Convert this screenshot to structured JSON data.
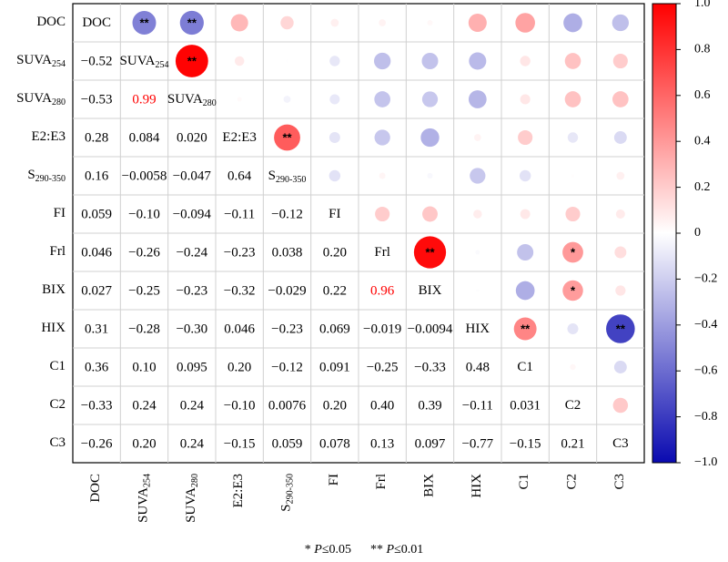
{
  "chart_data": {
    "type": "heatmap",
    "variables": [
      "DOC",
      "SUVA254",
      "SUVA280",
      "E2:E3",
      "S290-350",
      "FI",
      "Frl",
      "BIX",
      "HIX",
      "C1",
      "C2",
      "C3"
    ],
    "labels": [
      {
        "main": "DOC",
        "sub": ""
      },
      {
        "main": "SUVA",
        "sub": "254"
      },
      {
        "main": "SUVA",
        "sub": "280"
      },
      {
        "main": "E2:E3",
        "sub": ""
      },
      {
        "main": "S",
        "sub": "290-350"
      },
      {
        "main": "FI",
        "sub": ""
      },
      {
        "main": "Frl",
        "sub": ""
      },
      {
        "main": "BIX",
        "sub": ""
      },
      {
        "main": "HIX",
        "sub": ""
      },
      {
        "main": "C1",
        "sub": ""
      },
      {
        "main": "C2",
        "sub": ""
      },
      {
        "main": "C3",
        "sub": ""
      }
    ],
    "matrix": [
      [
        1,
        -0.52,
        -0.53,
        0.28,
        0.16,
        0.059,
        0.046,
        0.027,
        0.31,
        0.36,
        -0.33,
        -0.26
      ],
      [
        -0.52,
        1,
        0.99,
        0.084,
        -0.0058,
        -0.1,
        -0.26,
        -0.25,
        -0.28,
        0.1,
        0.24,
        0.2
      ],
      [
        -0.53,
        0.99,
        1,
        0.02,
        -0.047,
        -0.094,
        -0.24,
        -0.23,
        -0.3,
        0.095,
        0.24,
        0.24
      ],
      [
        0.28,
        0.084,
        0.02,
        1,
        0.64,
        -0.11,
        -0.23,
        -0.32,
        0.046,
        0.2,
        -0.1,
        -0.15
      ],
      [
        0.16,
        -0.0058,
        -0.047,
        0.64,
        1,
        -0.12,
        0.038,
        -0.029,
        -0.23,
        -0.12,
        0.0076,
        0.059
      ],
      [
        0.059,
        -0.1,
        -0.094,
        -0.11,
        -0.12,
        1,
        0.2,
        0.22,
        0.069,
        0.091,
        0.2,
        0.078
      ],
      [
        0.046,
        -0.26,
        -0.24,
        -0.23,
        0.038,
        0.2,
        1,
        0.96,
        -0.019,
        -0.25,
        0.4,
        0.13
      ],
      [
        0.027,
        -0.25,
        -0.23,
        -0.32,
        -0.029,
        0.22,
        0.96,
        1,
        -0.0094,
        -0.33,
        0.39,
        0.097
      ],
      [
        0.31,
        -0.28,
        -0.3,
        0.046,
        -0.23,
        0.069,
        -0.019,
        -0.0094,
        1,
        0.48,
        -0.11,
        -0.77
      ],
      [
        0.36,
        0.1,
        0.095,
        0.2,
        -0.12,
        0.091,
        -0.25,
        -0.33,
        0.48,
        1,
        0.031,
        -0.15
      ],
      [
        -0.33,
        0.24,
        0.24,
        -0.1,
        0.0076,
        0.2,
        0.4,
        0.39,
        -0.11,
        0.031,
        1,
        0.21
      ],
      [
        -0.26,
        0.2,
        0.24,
        -0.15,
        0.059,
        0.078,
        0.13,
        0.097,
        -0.77,
        -0.15,
        0.21,
        1
      ]
    ],
    "lower_text": [
      [
        "",
        "",
        "",
        "",
        "",
        "",
        "",
        "",
        "",
        "",
        "",
        ""
      ],
      [
        "−0.52",
        "",
        "",
        "",
        "",
        "",
        "",
        "",
        "",
        "",
        "",
        ""
      ],
      [
        "−0.53",
        "0.99",
        "",
        "",
        "",
        "",
        "",
        "",
        "",
        "",
        "",
        ""
      ],
      [
        "0.28",
        "0.084",
        "0.020",
        "",
        "",
        "",
        "",
        "",
        "",
        "",
        "",
        ""
      ],
      [
        "0.16",
        "−0.0058",
        "−0.047",
        "0.64",
        "",
        "",
        "",
        "",
        "",
        "",
        "",
        ""
      ],
      [
        "0.059",
        "−0.10",
        "−0.094",
        "−0.11",
        "−0.12",
        "",
        "",
        "",
        "",
        "",
        "",
        ""
      ],
      [
        "0.046",
        "−0.26",
        "−0.24",
        "−0.23",
        "0.038",
        "0.20",
        "",
        "",
        "",
        "",
        "",
        ""
      ],
      [
        "0.027",
        "−0.25",
        "−0.23",
        "−0.32",
        "−0.029",
        "0.22",
        "0.96",
        "",
        "",
        "",
        "",
        ""
      ],
      [
        "0.31",
        "−0.28",
        "−0.30",
        "0.046",
        "−0.23",
        "0.069",
        "−0.019",
        "−0.0094",
        "",
        "",
        "",
        ""
      ],
      [
        "0.36",
        "0.10",
        "0.095",
        "0.20",
        "−0.12",
        "0.091",
        "−0.25",
        "−0.33",
        "0.48",
        "",
        "",
        ""
      ],
      [
        "−0.33",
        "0.24",
        "0.24",
        "−0.10",
        "0.0076",
        "0.20",
        "0.40",
        "0.39",
        "−0.11",
        "0.031",
        "",
        ""
      ],
      [
        "−0.26",
        "0.20",
        "0.24",
        "−0.15",
        "0.059",
        "0.078",
        "0.13",
        "0.097",
        "−0.77",
        "−0.15",
        "0.21",
        ""
      ]
    ],
    "highlight_cells": [
      [
        2,
        1
      ],
      [
        7,
        6
      ]
    ],
    "significance": [
      [
        0,
        1,
        "**"
      ],
      [
        0,
        2,
        "**"
      ],
      [
        1,
        2,
        "**"
      ],
      [
        3,
        4,
        "**"
      ],
      [
        6,
        7,
        "**"
      ],
      [
        6,
        10,
        "*"
      ],
      [
        7,
        10,
        "*"
      ],
      [
        8,
        9,
        "**"
      ],
      [
        8,
        11,
        "**"
      ]
    ],
    "colorbar": {
      "min": -1.0,
      "max": 1.0,
      "ticks": [
        1.0,
        0.8,
        0.6,
        0.4,
        0.2,
        0,
        -0.2,
        -0.4,
        -0.6,
        -0.8,
        -1.0
      ],
      "tick_labels": [
        "1.0",
        "0.8",
        "0.6",
        "0.4",
        "0.2",
        "0",
        "−0.2",
        "−0.4",
        "−0.6",
        "−0.8",
        "−1.0"
      ],
      "colors": {
        "negative": "#0a0ab0",
        "zero": "#ffffff",
        "positive": "#ff0000"
      }
    },
    "highlight_color": "#ff0000",
    "grid": true
  },
  "footnote": {
    "star1": "* ",
    "p1": "P",
    "t1": "≤0.05",
    "gap": "      ",
    "star2": "** ",
    "p2": "P",
    "t2": "≤0.01"
  }
}
